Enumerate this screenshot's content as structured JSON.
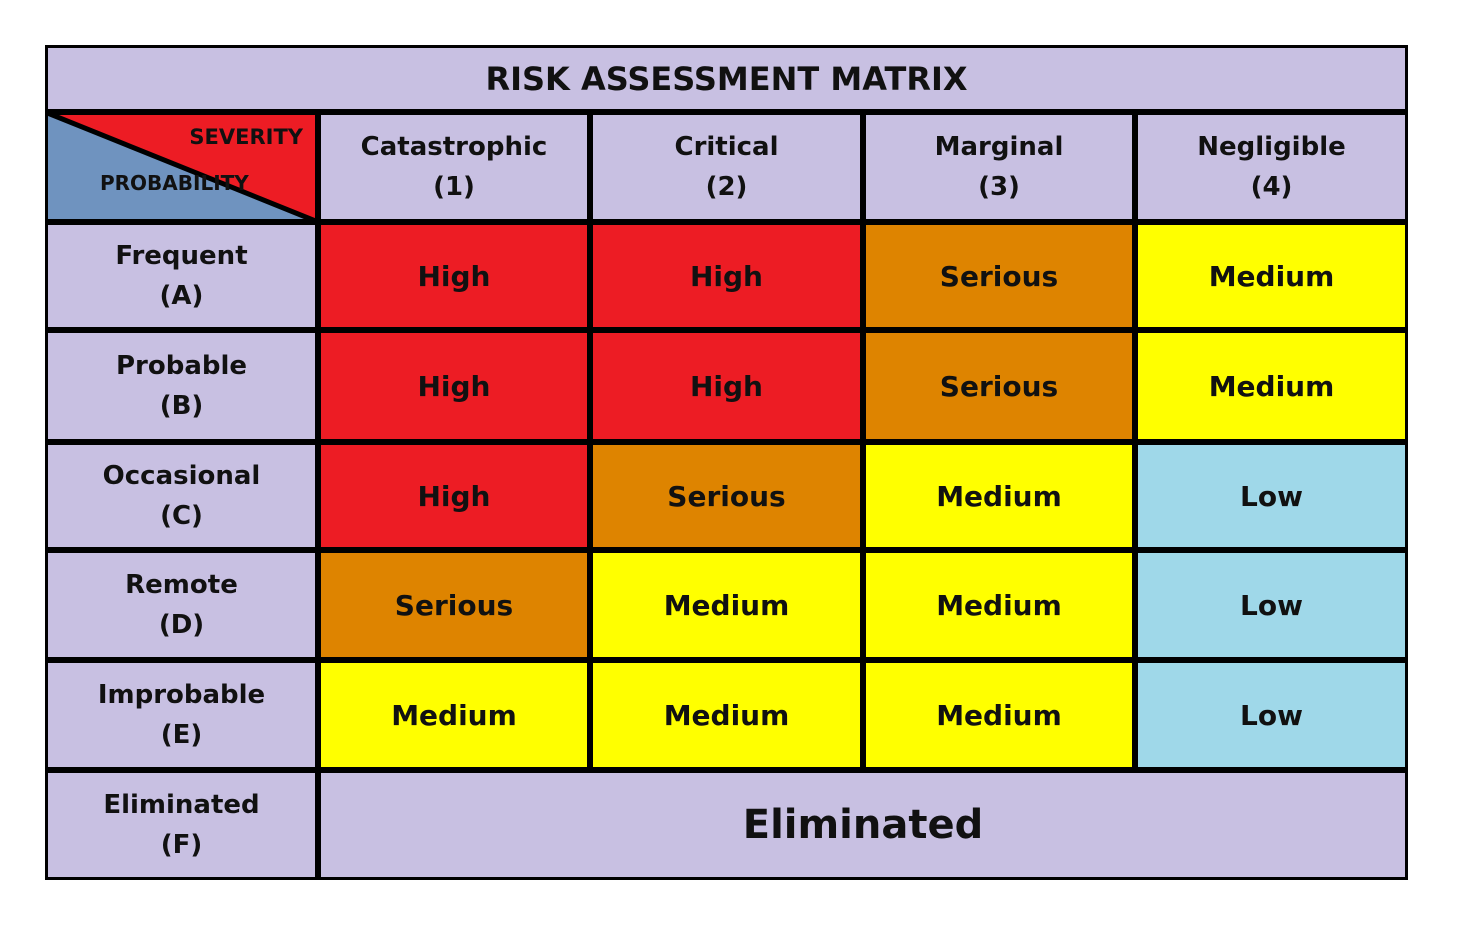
{
  "title": "RISK ASSESSMENT MATRIX",
  "corner": {
    "severity": "SEVERITY",
    "probability": "PROBABILITY"
  },
  "columns": [
    {
      "name": "Catastrophic",
      "code": "(1)"
    },
    {
      "name": "Critical",
      "code": "(2)"
    },
    {
      "name": "Marginal",
      "code": "(3)"
    },
    {
      "name": "Negligible",
      "code": "(4)"
    }
  ],
  "rows": [
    {
      "name": "Frequent",
      "code": "(A)",
      "cells": [
        {
          "text": "High",
          "color": "#ed1c24"
        },
        {
          "text": "High",
          "color": "#ed1c24"
        },
        {
          "text": "Serious",
          "color": "#de8400"
        },
        {
          "text": "Medium",
          "color": "#ffff00"
        }
      ]
    },
    {
      "name": "Probable",
      "code": "(B)",
      "cells": [
        {
          "text": "High",
          "color": "#ed1c24"
        },
        {
          "text": "High",
          "color": "#ed1c24"
        },
        {
          "text": "Serious",
          "color": "#de8400"
        },
        {
          "text": "Medium",
          "color": "#ffff00"
        }
      ]
    },
    {
      "name": "Occasional",
      "code": "(C)",
      "cells": [
        {
          "text": "High",
          "color": "#ed1c24"
        },
        {
          "text": "Serious",
          "color": "#de8400"
        },
        {
          "text": "Medium",
          "color": "#ffff00"
        },
        {
          "text": "Low",
          "color": "#9fd8e9"
        }
      ]
    },
    {
      "name": "Remote",
      "code": "(D)",
      "cells": [
        {
          "text": "Serious",
          "color": "#de8400"
        },
        {
          "text": "Medium",
          "color": "#ffff00"
        },
        {
          "text": "Medium",
          "color": "#ffff00"
        },
        {
          "text": "Low",
          "color": "#9fd8e9"
        }
      ]
    },
    {
      "name": "Improbable",
      "code": "(E)",
      "cells": [
        {
          "text": "Medium",
          "color": "#ffff00"
        },
        {
          "text": "Medium",
          "color": "#ffff00"
        },
        {
          "text": "Medium",
          "color": "#ffff00"
        },
        {
          "text": "Low",
          "color": "#9fd8e9"
        }
      ]
    }
  ],
  "eliminated": {
    "name": "Eliminated",
    "code": "(F)",
    "text": "Eliminated"
  }
}
